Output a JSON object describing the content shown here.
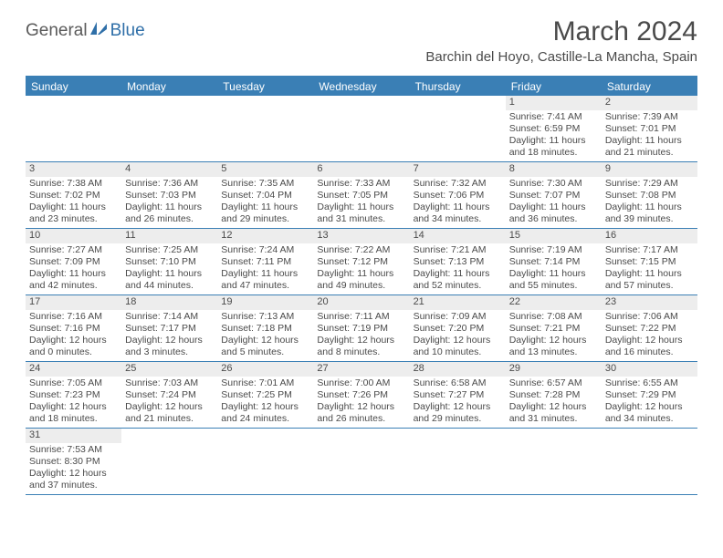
{
  "logo": {
    "part1": "General",
    "part2": "Blue"
  },
  "colors": {
    "header_bar": "#3a7fb5",
    "daynum_bg": "#ededed",
    "text": "#4a4a4a",
    "logo_blue": "#2f6fa8"
  },
  "title": "March 2024",
  "location": "Barchin del Hoyo, Castille-La Mancha, Spain",
  "days_of_week": [
    "Sunday",
    "Monday",
    "Tuesday",
    "Wednesday",
    "Thursday",
    "Friday",
    "Saturday"
  ],
  "weeks": [
    [
      null,
      null,
      null,
      null,
      null,
      {
        "n": "1",
        "sunrise": "Sunrise: 7:41 AM",
        "sunset": "Sunset: 6:59 PM",
        "daylight": "Daylight: 11 hours and 18 minutes."
      },
      {
        "n": "2",
        "sunrise": "Sunrise: 7:39 AM",
        "sunset": "Sunset: 7:01 PM",
        "daylight": "Daylight: 11 hours and 21 minutes."
      }
    ],
    [
      {
        "n": "3",
        "sunrise": "Sunrise: 7:38 AM",
        "sunset": "Sunset: 7:02 PM",
        "daylight": "Daylight: 11 hours and 23 minutes."
      },
      {
        "n": "4",
        "sunrise": "Sunrise: 7:36 AM",
        "sunset": "Sunset: 7:03 PM",
        "daylight": "Daylight: 11 hours and 26 minutes."
      },
      {
        "n": "5",
        "sunrise": "Sunrise: 7:35 AM",
        "sunset": "Sunset: 7:04 PM",
        "daylight": "Daylight: 11 hours and 29 minutes."
      },
      {
        "n": "6",
        "sunrise": "Sunrise: 7:33 AM",
        "sunset": "Sunset: 7:05 PM",
        "daylight": "Daylight: 11 hours and 31 minutes."
      },
      {
        "n": "7",
        "sunrise": "Sunrise: 7:32 AM",
        "sunset": "Sunset: 7:06 PM",
        "daylight": "Daylight: 11 hours and 34 minutes."
      },
      {
        "n": "8",
        "sunrise": "Sunrise: 7:30 AM",
        "sunset": "Sunset: 7:07 PM",
        "daylight": "Daylight: 11 hours and 36 minutes."
      },
      {
        "n": "9",
        "sunrise": "Sunrise: 7:29 AM",
        "sunset": "Sunset: 7:08 PM",
        "daylight": "Daylight: 11 hours and 39 minutes."
      }
    ],
    [
      {
        "n": "10",
        "sunrise": "Sunrise: 7:27 AM",
        "sunset": "Sunset: 7:09 PM",
        "daylight": "Daylight: 11 hours and 42 minutes."
      },
      {
        "n": "11",
        "sunrise": "Sunrise: 7:25 AM",
        "sunset": "Sunset: 7:10 PM",
        "daylight": "Daylight: 11 hours and 44 minutes."
      },
      {
        "n": "12",
        "sunrise": "Sunrise: 7:24 AM",
        "sunset": "Sunset: 7:11 PM",
        "daylight": "Daylight: 11 hours and 47 minutes."
      },
      {
        "n": "13",
        "sunrise": "Sunrise: 7:22 AM",
        "sunset": "Sunset: 7:12 PM",
        "daylight": "Daylight: 11 hours and 49 minutes."
      },
      {
        "n": "14",
        "sunrise": "Sunrise: 7:21 AM",
        "sunset": "Sunset: 7:13 PM",
        "daylight": "Daylight: 11 hours and 52 minutes."
      },
      {
        "n": "15",
        "sunrise": "Sunrise: 7:19 AM",
        "sunset": "Sunset: 7:14 PM",
        "daylight": "Daylight: 11 hours and 55 minutes."
      },
      {
        "n": "16",
        "sunrise": "Sunrise: 7:17 AM",
        "sunset": "Sunset: 7:15 PM",
        "daylight": "Daylight: 11 hours and 57 minutes."
      }
    ],
    [
      {
        "n": "17",
        "sunrise": "Sunrise: 7:16 AM",
        "sunset": "Sunset: 7:16 PM",
        "daylight": "Daylight: 12 hours and 0 minutes."
      },
      {
        "n": "18",
        "sunrise": "Sunrise: 7:14 AM",
        "sunset": "Sunset: 7:17 PM",
        "daylight": "Daylight: 12 hours and 3 minutes."
      },
      {
        "n": "19",
        "sunrise": "Sunrise: 7:13 AM",
        "sunset": "Sunset: 7:18 PM",
        "daylight": "Daylight: 12 hours and 5 minutes."
      },
      {
        "n": "20",
        "sunrise": "Sunrise: 7:11 AM",
        "sunset": "Sunset: 7:19 PM",
        "daylight": "Daylight: 12 hours and 8 minutes."
      },
      {
        "n": "21",
        "sunrise": "Sunrise: 7:09 AM",
        "sunset": "Sunset: 7:20 PM",
        "daylight": "Daylight: 12 hours and 10 minutes."
      },
      {
        "n": "22",
        "sunrise": "Sunrise: 7:08 AM",
        "sunset": "Sunset: 7:21 PM",
        "daylight": "Daylight: 12 hours and 13 minutes."
      },
      {
        "n": "23",
        "sunrise": "Sunrise: 7:06 AM",
        "sunset": "Sunset: 7:22 PM",
        "daylight": "Daylight: 12 hours and 16 minutes."
      }
    ],
    [
      {
        "n": "24",
        "sunrise": "Sunrise: 7:05 AM",
        "sunset": "Sunset: 7:23 PM",
        "daylight": "Daylight: 12 hours and 18 minutes."
      },
      {
        "n": "25",
        "sunrise": "Sunrise: 7:03 AM",
        "sunset": "Sunset: 7:24 PM",
        "daylight": "Daylight: 12 hours and 21 minutes."
      },
      {
        "n": "26",
        "sunrise": "Sunrise: 7:01 AM",
        "sunset": "Sunset: 7:25 PM",
        "daylight": "Daylight: 12 hours and 24 minutes."
      },
      {
        "n": "27",
        "sunrise": "Sunrise: 7:00 AM",
        "sunset": "Sunset: 7:26 PM",
        "daylight": "Daylight: 12 hours and 26 minutes."
      },
      {
        "n": "28",
        "sunrise": "Sunrise: 6:58 AM",
        "sunset": "Sunset: 7:27 PM",
        "daylight": "Daylight: 12 hours and 29 minutes."
      },
      {
        "n": "29",
        "sunrise": "Sunrise: 6:57 AM",
        "sunset": "Sunset: 7:28 PM",
        "daylight": "Daylight: 12 hours and 31 minutes."
      },
      {
        "n": "30",
        "sunrise": "Sunrise: 6:55 AM",
        "sunset": "Sunset: 7:29 PM",
        "daylight": "Daylight: 12 hours and 34 minutes."
      }
    ],
    [
      {
        "n": "31",
        "sunrise": "Sunrise: 7:53 AM",
        "sunset": "Sunset: 8:30 PM",
        "daylight": "Daylight: 12 hours and 37 minutes."
      },
      null,
      null,
      null,
      null,
      null,
      null
    ]
  ]
}
